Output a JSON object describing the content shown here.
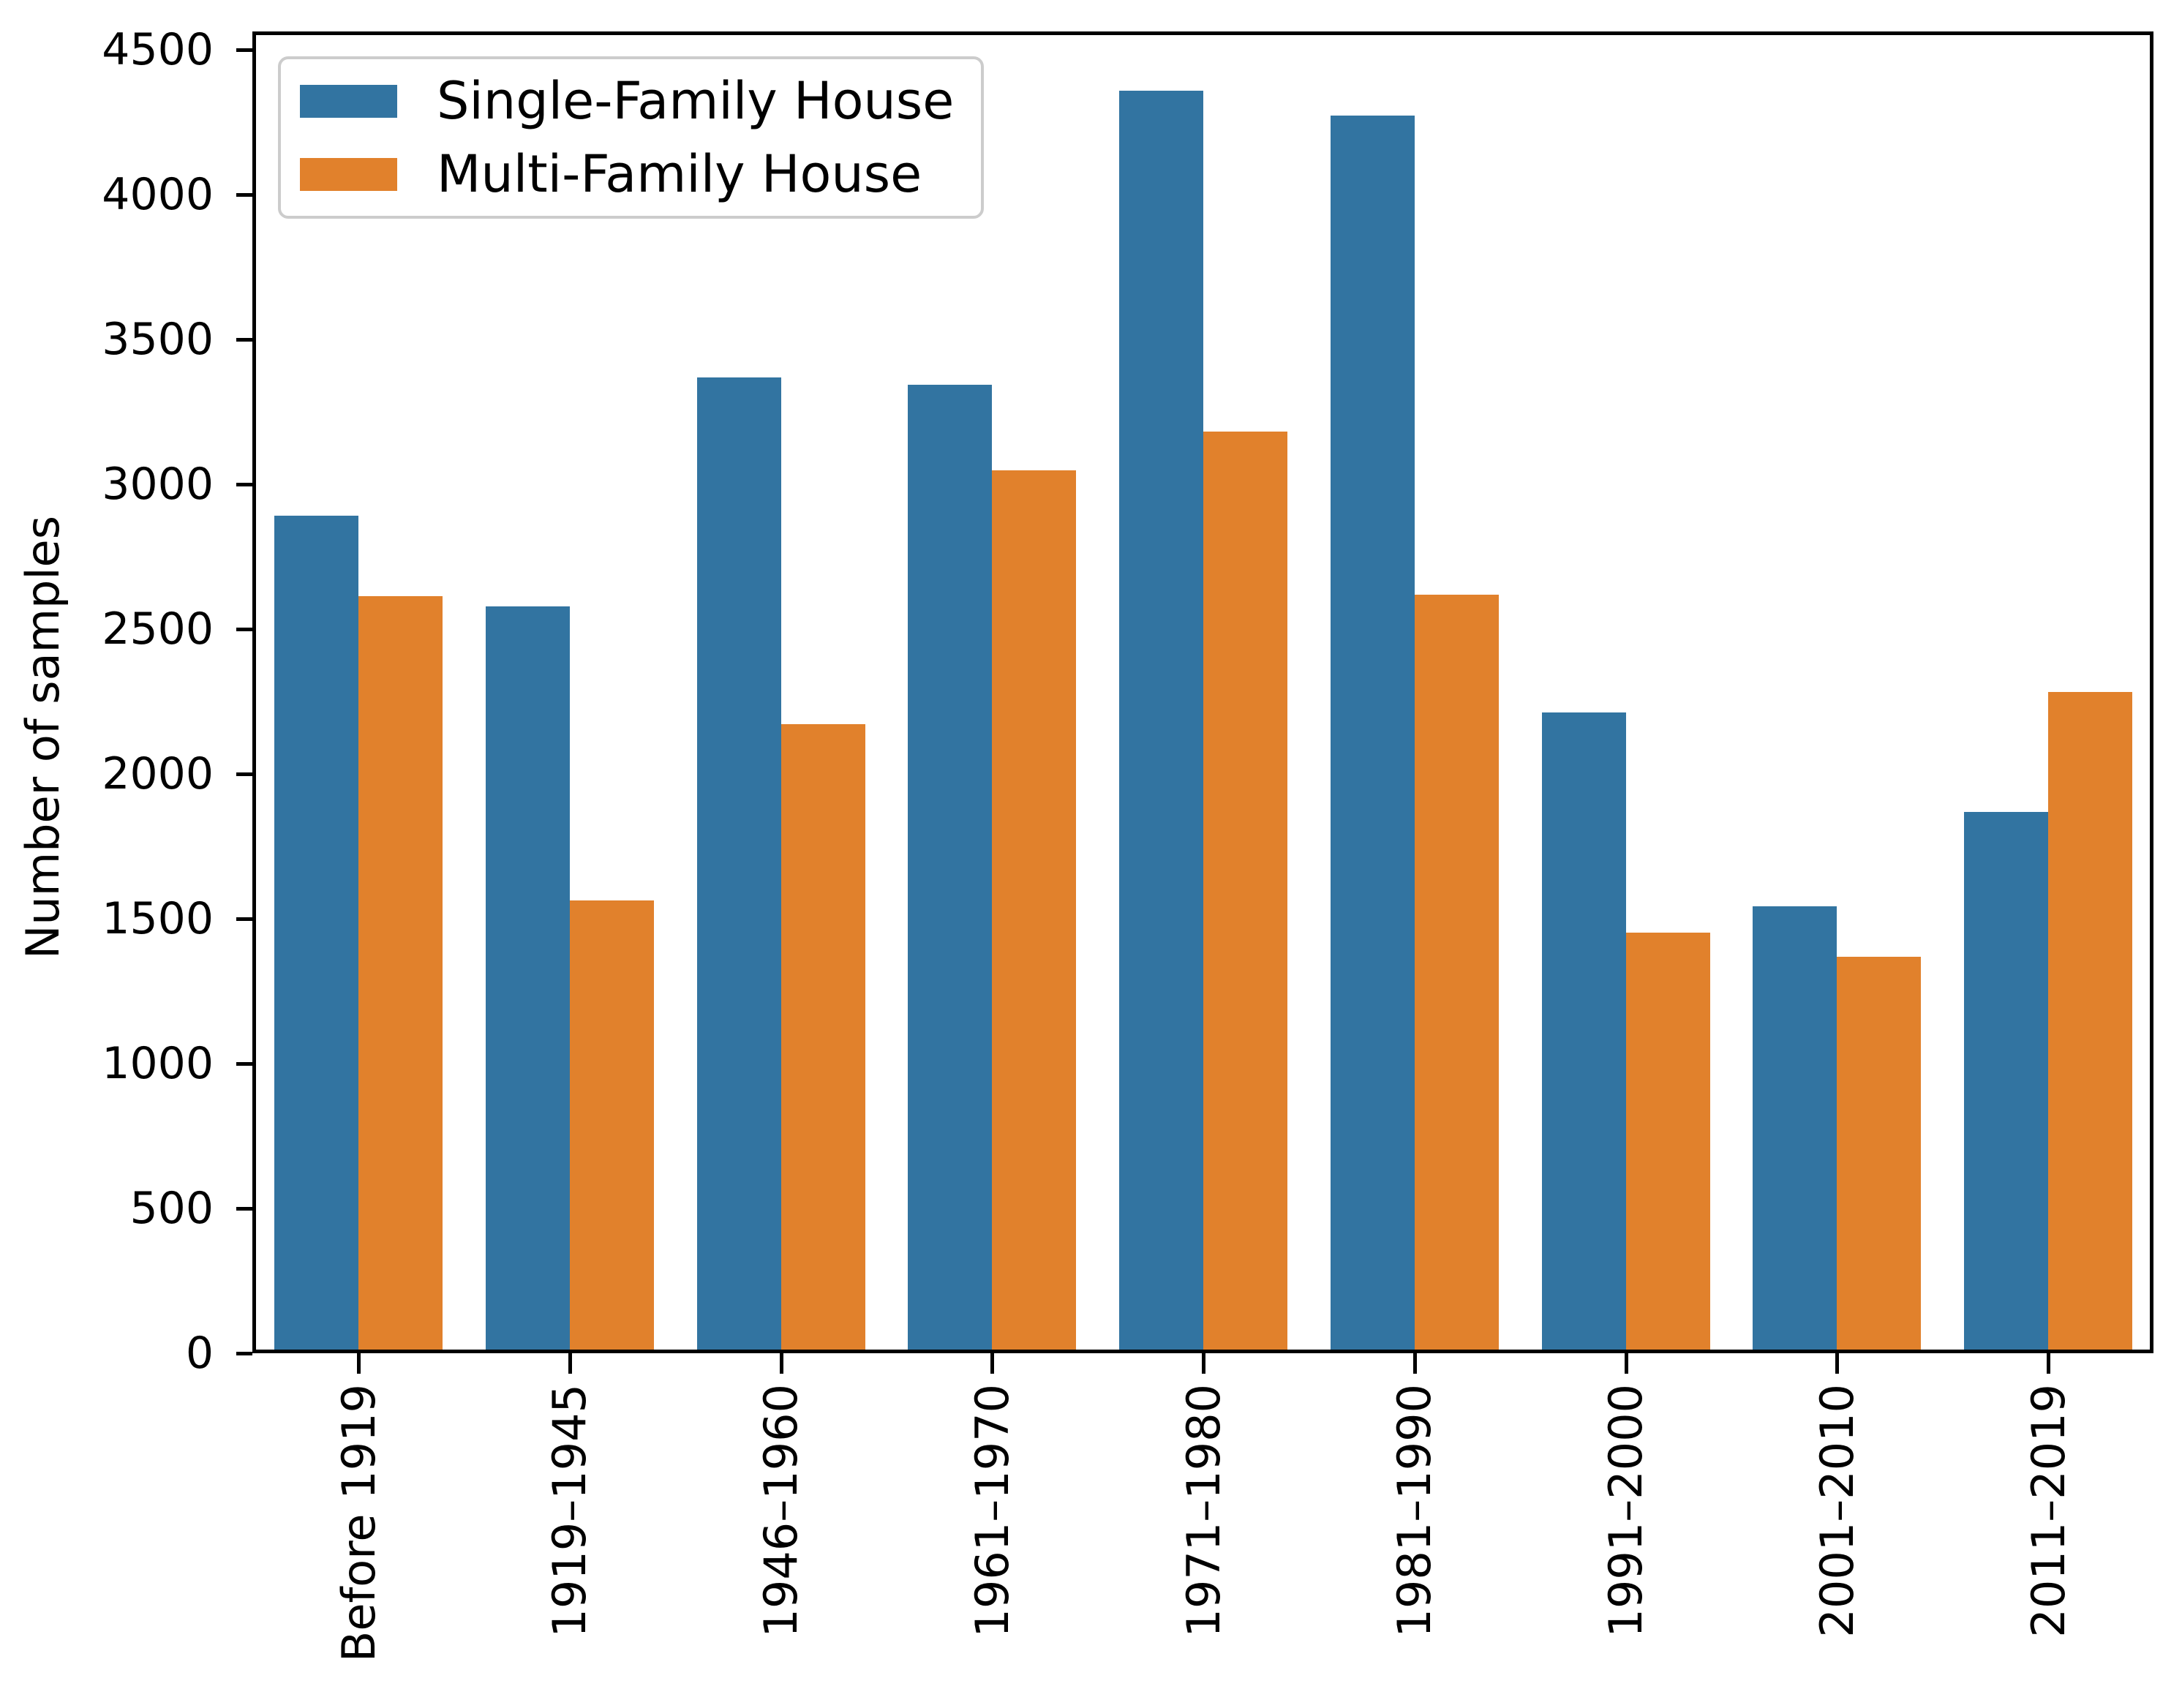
{
  "figure": {
    "background": "#ffffff"
  },
  "legend": {
    "items": [
      {
        "label": "Single-Family House",
        "color": "#3274a1"
      },
      {
        "label": "Multi-Family House",
        "color": "#e1812c"
      }
    ]
  },
  "chart_data": {
    "type": "bar",
    "title": "",
    "xlabel": "",
    "ylabel": "Number of samples",
    "categories": [
      "Before 1919",
      "1919–1945",
      "1946–1960",
      "1961–1970",
      "1971–1980",
      "1981–1990",
      "1991–2000",
      "2001–2010",
      "2011–2019"
    ],
    "series": [
      {
        "name": "Single-Family House",
        "color": "#3274a1",
        "values": [
          2880,
          2565,
          3355,
          3330,
          4345,
          4260,
          2200,
          1530,
          1855
        ]
      },
      {
        "name": "Multi-Family House",
        "color": "#e1812c",
        "values": [
          2600,
          1550,
          2160,
          3035,
          3170,
          2605,
          1440,
          1355,
          2270
        ]
      }
    ],
    "yticks": [
      0,
      500,
      1000,
      1500,
      2000,
      2500,
      3000,
      3500,
      4000,
      4500
    ],
    "ylim": [
      0,
      4563
    ],
    "grid": false,
    "legend_position": "upper left"
  }
}
